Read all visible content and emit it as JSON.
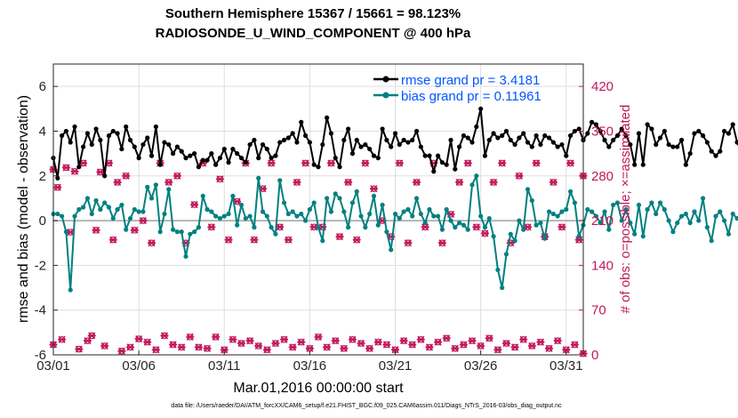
{
  "title_line1": "Southern Hemisphere 15367 / 15661 = 98.123%",
  "title_line2": "RADIOSONDE_U_WIND_COMPONENT @ 400 hPa",
  "xlabel": "Mar.01,2016 00:00:00 start",
  "ylabel_left": "rmse and bias (model - observation)",
  "ylabel_right": "# of obs: o=possible; ×=assimilated",
  "footer": "data file: /Users/raeder/DAI/ATM_forcXX/CAM6_setup/f.e21.FHIST_BGC.f09_025.CAM6assim.011/Diags_NTrS_2016-03/obs_diag_output.nc",
  "chart_data": {
    "type": "line",
    "title": "Southern Hemisphere 15367 / 15661 = 98.123%  RADIOSONDE_U_WIND_COMPONENT @ 400 hPa",
    "x_range_days": [
      0,
      31
    ],
    "x_ticks": [
      {
        "day": 0,
        "label": "03/01"
      },
      {
        "day": 5,
        "label": "03/06"
      },
      {
        "day": 10,
        "label": "03/11"
      },
      {
        "day": 15,
        "label": "03/16"
      },
      {
        "day": 20,
        "label": "03/21"
      },
      {
        "day": 25,
        "label": "03/26"
      },
      {
        "day": 30,
        "label": "03/31"
      }
    ],
    "ylim_left": [
      -6,
      7
    ],
    "y_ticks_left": [
      -6,
      -4,
      -2,
      0,
      2,
      4,
      6
    ],
    "ylim_right": [
      0,
      455
    ],
    "y_ticks_right": [
      0,
      70,
      140,
      210,
      280,
      350,
      420
    ],
    "step_days": 0.25,
    "series": [
      {
        "name": "rmse grand pr = 3.4181",
        "axis": "left",
        "color": "#000000",
        "values": [
          2.8,
          1.9,
          3.8,
          4.0,
          3.5,
          4.2,
          2.4,
          3.3,
          3.9,
          3.4,
          4.1,
          3.6,
          2.0,
          3.8,
          4.0,
          3.9,
          3.2,
          4.2,
          3.6,
          3.3,
          2.8,
          3.4,
          3.7,
          2.9,
          4.2,
          2.5,
          3.5,
          3.4,
          3.0,
          3.3,
          3.1,
          2.8,
          2.9,
          3.0,
          2.4,
          2.7,
          2.7,
          3.0,
          2.5,
          2.8,
          3.2,
          2.6,
          3.2,
          3.0,
          2.8,
          2.6,
          3.4,
          3.6,
          2.8,
          3.4,
          3.2,
          2.8,
          2.9,
          3.5,
          3.6,
          3.7,
          3.9,
          3.5,
          4.4,
          3.8,
          3.5,
          2.5,
          2.4,
          3.4,
          4.6,
          3.9,
          2.8,
          2.4,
          3.6,
          4.1,
          3.0,
          3.6,
          3.3,
          3.4,
          3.2,
          2.9,
          2.8,
          4.1,
          3.6,
          3.3,
          3.9,
          3.4,
          3.6,
          3.5,
          3.6,
          4.0,
          3.3,
          2.9,
          2.9,
          2.2,
          2.9,
          2.6,
          2.5,
          3.6,
          2.3,
          3.3,
          3.8,
          3.7,
          3.5,
          4.2,
          5.0,
          2.9,
          3.6,
          3.9,
          3.7,
          3.8,
          4.0,
          3.6,
          3.4,
          3.7,
          3.9,
          3.5,
          3.3,
          3.8,
          3.4,
          3.8,
          3.7,
          3.5,
          3.3,
          3.4,
          2.9,
          3.8,
          4.0,
          4.1,
          3.6,
          3.9,
          4.4,
          4.3,
          4.0,
          3.6,
          3.3,
          3.6,
          3.8,
          4.1,
          3.8,
          3.4,
          2.5,
          3.9,
          2.5,
          4.3,
          4.1,
          3.4,
          3.7,
          4.0,
          3.4,
          3.3,
          3.3,
          3.6,
          2.5,
          3.0,
          3.9,
          4.0,
          3.8,
          3.5,
          3.1,
          2.9,
          3.1,
          4.0,
          3.9,
          4.3,
          3.5,
          3.1,
          2.8,
          3.9,
          4.3,
          3.6,
          3.6,
          3.9,
          3.2,
          3.6,
          3.4,
          3.5,
          3.3,
          3.1,
          2.9,
          2.6,
          2.6,
          3.2,
          3.2,
          3.4,
          3.7,
          2.7,
          3.5,
          3.1,
          2.8,
          3.8,
          2.5,
          3.8,
          3.4,
          2.5,
          2.3,
          3.1,
          3.0,
          3.1,
          3.3,
          3.2,
          3.7,
          3.8,
          3.7,
          3.6
        ]
      },
      {
        "name": "bias grand pr = 0.11961",
        "axis": "left",
        "color": "#008080",
        "values": [
          0.3,
          0.3,
          0.2,
          -0.5,
          -3.1,
          0.2,
          0.5,
          0.6,
          1.0,
          0.3,
          0.9,
          0.5,
          0.8,
          0.6,
          0.1,
          0.5,
          0.7,
          -0.4,
          0.1,
          0.5,
          0.4,
          0.4,
          1.5,
          1.0,
          1.6,
          -0.5,
          0.3,
          1.4,
          -0.4,
          -0.5,
          -0.5,
          -1.6,
          -0.6,
          -0.5,
          -0.3,
          1.1,
          0.5,
          0.4,
          0.2,
          0.1,
          0.2,
          0.3,
          1.1,
          -0.2,
          0.7,
          0.1,
          0.2,
          -0.3,
          1.9,
          0.4,
          0.2,
          -0.3,
          -0.6,
          1.8,
          0.8,
          0.3,
          0.4,
          0.2,
          0.3,
          0.0,
          0.5,
          0.8,
          -0.3,
          -0.9,
          1.0,
          0.4,
          1.2,
          1.0,
          0.4,
          -0.3,
          0.8,
          1.3,
          0.2,
          -0.3,
          0.3,
          1.1,
          -0.2,
          0.7,
          -0.5,
          -1.3,
          0.3,
          0.1,
          0.4,
          0.5,
          0.2,
          1.0,
          0.3,
          -0.1,
          0.5,
          0.2,
          0.2,
          -0.4,
          0.5,
          0.0,
          -0.3,
          -0.1,
          -0.2,
          -0.4,
          1.6,
          2.0,
          0.2,
          -0.3,
          0.1,
          -0.7,
          -2.2,
          -3.0,
          -1.5,
          -0.6,
          -0.9,
          0.0,
          -0.4,
          1.4,
          0.9,
          -0.2,
          -0.1,
          -0.8,
          0.4,
          0.3,
          0.2,
          0.4,
          0.5,
          1.3,
          0.8,
          -0.7,
          -0.2,
          0.5,
          0.4,
          0.2,
          -0.1,
          0.4,
          -0.4,
          0.7,
          0.8,
          0.0,
          0.5,
          -0.1,
          -0.6,
          0.7,
          -0.7,
          0.5,
          0.8,
          0.3,
          0.8,
          0.5,
          0.0,
          -0.5,
          -0.1,
          0.2,
          0.3,
          -0.1,
          0.4,
          0.0,
          1.0,
          -0.3,
          -0.9,
          0.2,
          0.4,
          0.0,
          -0.6,
          0.3,
          0.1,
          0.4,
          0.2,
          0.5,
          -0.3,
          -0.1,
          -0.6,
          1.3,
          -0.1,
          -0.2,
          0.3,
          0.5,
          -0.2,
          2.8,
          1.0,
          -0.8,
          0.3,
          0.0,
          -0.2,
          -0.1,
          -0.4,
          -0.5,
          -0.2,
          -0.1,
          -0.1,
          -0.7,
          -0.1,
          -0.2,
          -0.4,
          0.1,
          1.0,
          -0.6,
          -0.8,
          1.3,
          -0.1,
          -1.2,
          2.0
        ]
      },
      {
        "name": "obs count",
        "axis": "right",
        "marker_possible": "o",
        "marker_assimilated": "x",
        "color": "#c2185b",
        "points": [
          [
            0.0,
            16
          ],
          [
            0.0,
            290
          ],
          [
            0.25,
            262
          ],
          [
            0.5,
            24
          ],
          [
            0.75,
            293
          ],
          [
            1.0,
            192
          ],
          [
            1.25,
            287
          ],
          [
            1.5,
            9
          ],
          [
            1.75,
            300
          ],
          [
            2.0,
            22
          ],
          [
            2.25,
            30
          ],
          [
            2.5,
            195
          ],
          [
            2.75,
            286
          ],
          [
            3.0,
            14
          ],
          [
            3.25,
            300
          ],
          [
            3.5,
            180
          ],
          [
            3.75,
            270
          ],
          [
            4.0,
            6
          ],
          [
            4.25,
            280
          ],
          [
            4.5,
            12
          ],
          [
            4.75,
            195
          ],
          [
            5.0,
            25
          ],
          [
            5.25,
            210
          ],
          [
            5.5,
            20
          ],
          [
            5.75,
            175
          ],
          [
            6.0,
            8
          ],
          [
            6.25,
            300
          ],
          [
            6.5,
            30
          ],
          [
            6.75,
            270
          ],
          [
            7.0,
            16
          ],
          [
            7.25,
            280
          ],
          [
            7.5,
            12
          ],
          [
            7.75,
            175
          ],
          [
            8.0,
            28
          ],
          [
            8.25,
            235
          ],
          [
            8.5,
            12
          ],
          [
            8.75,
            300
          ],
          [
            9.0,
            10
          ],
          [
            9.25,
            200
          ],
          [
            9.5,
            28
          ],
          [
            9.75,
            275
          ],
          [
            10.0,
            8
          ],
          [
            10.25,
            180
          ],
          [
            10.5,
            24
          ],
          [
            10.75,
            240
          ],
          [
            11.0,
            18
          ],
          [
            11.25,
            300
          ],
          [
            11.5,
            22
          ],
          [
            11.75,
            180
          ],
          [
            12.0,
            14
          ],
          [
            12.25,
            260
          ],
          [
            12.5,
            8
          ],
          [
            12.75,
            300
          ],
          [
            13.0,
            18
          ],
          [
            13.25,
            200
          ],
          [
            13.5,
            24
          ],
          [
            13.75,
            180
          ],
          [
            14.0,
            12
          ],
          [
            14.25,
            270
          ],
          [
            14.5,
            20
          ],
          [
            14.75,
            300
          ],
          [
            15.0,
            10
          ],
          [
            15.25,
            200
          ],
          [
            15.5,
            28
          ],
          [
            15.75,
            200
          ],
          [
            16.0,
            12
          ],
          [
            16.25,
            300
          ],
          [
            16.5,
            22
          ],
          [
            16.75,
            185
          ],
          [
            17.0,
            10
          ],
          [
            17.25,
            270
          ],
          [
            17.5,
            24
          ],
          [
            17.75,
            180
          ],
          [
            18.0,
            18
          ],
          [
            18.25,
            300
          ],
          [
            18.5,
            10
          ],
          [
            18.75,
            260
          ],
          [
            19.0,
            20
          ],
          [
            19.25,
            210
          ],
          [
            19.5,
            16
          ],
          [
            19.75,
            185
          ],
          [
            20.0,
            8
          ],
          [
            20.25,
            300
          ],
          [
            20.5,
            22
          ],
          [
            20.75,
            175
          ],
          [
            21.0,
            16
          ],
          [
            21.25,
            270
          ],
          [
            21.5,
            24
          ],
          [
            21.75,
            200
          ],
          [
            22.0,
            12
          ],
          [
            22.25,
            300
          ],
          [
            22.5,
            20
          ],
          [
            22.75,
            175
          ],
          [
            23.0,
            26
          ],
          [
            23.25,
            220
          ],
          [
            23.5,
            10
          ],
          [
            23.75,
            270
          ],
          [
            24.0,
            16
          ],
          [
            24.25,
            300
          ],
          [
            24.5,
            22
          ],
          [
            24.75,
            200
          ],
          [
            25.0,
            14
          ],
          [
            25.25,
            190
          ],
          [
            25.5,
            26
          ],
          [
            25.75,
            270
          ],
          [
            26.0,
            8
          ],
          [
            26.25,
            300
          ],
          [
            26.5,
            18
          ],
          [
            26.75,
            175
          ],
          [
            27.0,
            12
          ],
          [
            27.25,
            280
          ],
          [
            27.5,
            24
          ],
          [
            27.75,
            200
          ],
          [
            28.0,
            14
          ],
          [
            28.25,
            300
          ],
          [
            28.5,
            20
          ],
          [
            28.75,
            185
          ],
          [
            29.0,
            10
          ],
          [
            29.25,
            270
          ],
          [
            29.5,
            22
          ],
          [
            29.75,
            200
          ],
          [
            30.0,
            8
          ],
          [
            30.25,
            300
          ],
          [
            30.5,
            16
          ],
          [
            30.75,
            180
          ],
          [
            31.0,
            2
          ],
          [
            31.0,
            280
          ]
        ]
      }
    ]
  },
  "colors": {
    "rmse": "#000000",
    "bias": "#008080",
    "obs": "#c2185b",
    "legend_text": "#0055ff",
    "zero_line": "#b4b4b4"
  }
}
